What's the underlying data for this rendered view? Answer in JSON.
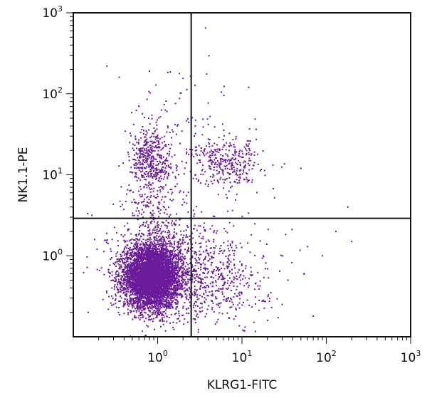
{
  "chart_data": {
    "type": "scatter",
    "xlabel": "KLRG1-FITC",
    "ylabel": "NK1.1-PE",
    "xscale": "log",
    "yscale": "log",
    "xlim": [
      0.1,
      1000
    ],
    "ylim": [
      0.1,
      1000
    ],
    "x_ticks": [
      {
        "base": "10",
        "exp": "0",
        "value": 1
      },
      {
        "base": "10",
        "exp": "1",
        "value": 10
      },
      {
        "base": "10",
        "exp": "2",
        "value": 100
      },
      {
        "base": "10",
        "exp": "3",
        "value": 1000
      }
    ],
    "y_ticks": [
      {
        "base": "10",
        "exp": "0",
        "value": 1
      },
      {
        "base": "10",
        "exp": "1",
        "value": 10
      },
      {
        "base": "10",
        "exp": "2",
        "value": 100
      },
      {
        "base": "10",
        "exp": "3",
        "value": 1000
      }
    ],
    "gate": {
      "x": 2.5,
      "y": 2.9
    },
    "grid": false,
    "point_color": "#6a1b9a",
    "populations": [
      {
        "center": [
          0.85,
          0.55
        ],
        "spread": [
          0.16,
          0.19
        ],
        "count": 5200
      },
      {
        "center": [
          1.0,
          0.7
        ],
        "spread": [
          0.3,
          0.3
        ],
        "count": 700
      },
      {
        "center": [
          0.85,
          15
        ],
        "spread": [
          0.13,
          0.2
        ],
        "count": 420
      },
      {
        "center": [
          7,
          14
        ],
        "spread": [
          0.2,
          0.15
        ],
        "count": 320
      },
      {
        "center": [
          4,
          0.55
        ],
        "spread": [
          0.35,
          0.3
        ],
        "count": 650
      },
      {
        "center": [
          0.9,
          3.5
        ],
        "spread": [
          0.18,
          0.25
        ],
        "count": 180
      },
      {
        "center": [
          2,
          20
        ],
        "spread": [
          0.35,
          0.5
        ],
        "count": 160
      }
    ],
    "outliers": [
      [
        3.7,
        650
      ],
      [
        0.25,
        220
      ],
      [
        0.8,
        190
      ],
      [
        0.35,
        160
      ],
      [
        12,
        120
      ],
      [
        50,
        12
      ],
      [
        180,
        4
      ],
      [
        130,
        2
      ],
      [
        200,
        1.5
      ],
      [
        60,
        1.3
      ],
      [
        90,
        1.0
      ],
      [
        35,
        0.5
      ],
      [
        70,
        0.18
      ],
      [
        30,
        0.25
      ],
      [
        55,
        0.6
      ],
      [
        22,
        0.35
      ],
      [
        0.15,
        0.2
      ],
      [
        0.6,
        70
      ],
      [
        2.8,
        40
      ]
    ]
  }
}
